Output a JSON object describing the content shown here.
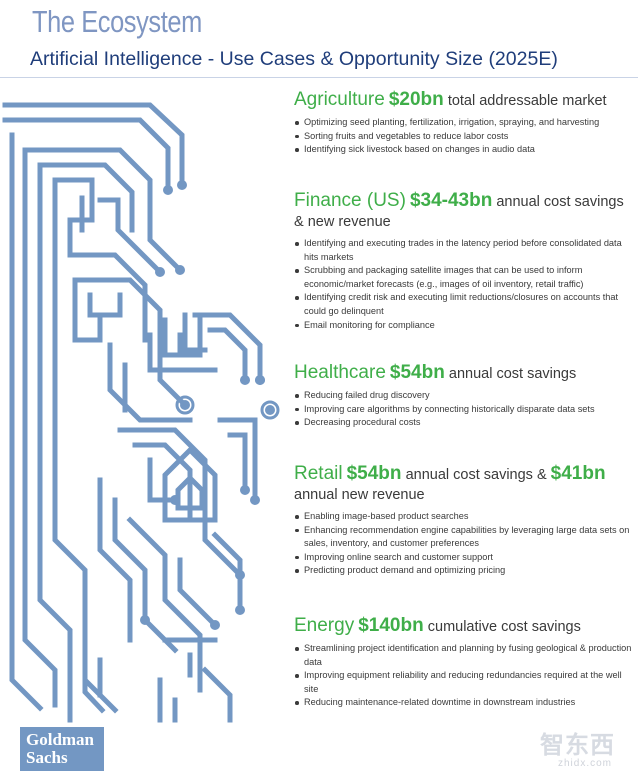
{
  "header": {
    "eyebrow": "The Ecosystem",
    "title": "Artificial Intelligence - Use Cases & Opportunity Size (2025E)"
  },
  "colors": {
    "accent_green": "#3fae49",
    "title_blue": "#1f3d7a",
    "circuit_blue": "#7397c3"
  },
  "sections": [
    {
      "sector": "Agriculture",
      "amount": "$20bn",
      "desc": "total addressable market",
      "bullets": [
        "Optimizing seed planting, fertilization, irrigation, spraying, and harvesting",
        "Sorting fruits and vegetables to reduce labor costs",
        "Identifying sick livestock based on changes in audio data"
      ]
    },
    {
      "sector": "Finance (US)",
      "amount": "$34-43bn",
      "desc": "annual cost savings & new revenue",
      "bullets": [
        "Identifying and executing trades in the latency period before consolidated data hits markets",
        "Scrubbing and packaging satellite images that can be used to inform economic/market forecasts (e.g., images of oil inventory, retail traffic)",
        "Identifying credit risk and executing limit reductions/closures on accounts that could go delinquent",
        "Email monitoring for compliance"
      ]
    },
    {
      "sector": "Healthcare",
      "amount": "$54bn",
      "desc": "annual cost savings",
      "bullets": [
        "Reducing failed drug discovery",
        "Improving care algorithms by connecting historically disparate data sets",
        "Decreasing procedural costs"
      ]
    },
    {
      "sector": "Retail",
      "amount": "$54bn",
      "desc": "annual cost savings &",
      "amount2": "$41bn",
      "desc2": "annual new revenue",
      "bullets": [
        "Enabling image-based product searches",
        "Enhancing recommendation engine capabilities by leveraging large data sets on sales, inventory, and customer preferences",
        "Improving online search and customer support",
        "Predicting product demand and optimizing pricing"
      ]
    },
    {
      "sector": "Energy",
      "amount": "$140bn",
      "desc": "cumulative cost savings",
      "bullets": [
        "Streamlining project identification and planning by fusing geological & production data",
        "Improving equipment reliability and reducing redundancies required at the well site",
        "Reducing maintenance-related downtime in downstream industries"
      ]
    }
  ],
  "logo": {
    "line1": "Goldman",
    "line2": "Sachs"
  },
  "watermark": {
    "logo": "智东西",
    "url": "zhidx.com"
  }
}
